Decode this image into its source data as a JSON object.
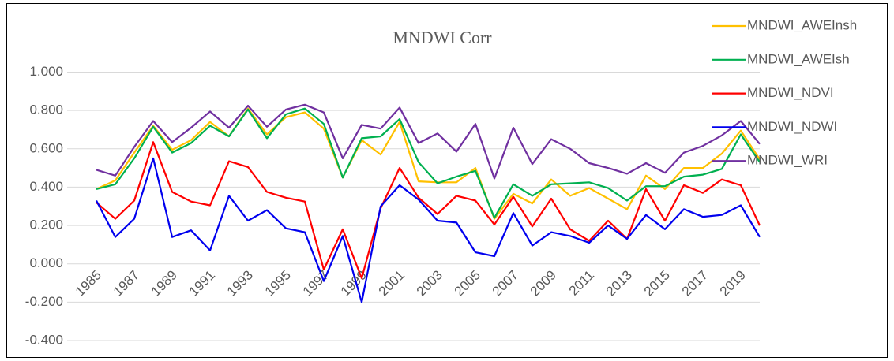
{
  "chart_data": {
    "type": "line",
    "title": "MNDWI Corr",
    "x": [
      1985,
      1986,
      1987,
      1988,
      1989,
      1990,
      1991,
      1992,
      1993,
      1994,
      1995,
      1996,
      1997,
      1998,
      1999,
      2000,
      2001,
      2002,
      2003,
      2004,
      2005,
      2006,
      2007,
      2008,
      2009,
      2010,
      2011,
      2012,
      2013,
      2014,
      2015,
      2016,
      2017,
      2018,
      2019,
      2020
    ],
    "xlim": [
      1984.5,
      2020.5
    ],
    "xticks": [
      1985,
      1987,
      1989,
      1991,
      1993,
      1995,
      1997,
      1999,
      2001,
      2003,
      2005,
      2007,
      2009,
      2011,
      2013,
      2015,
      2017,
      2019
    ],
    "ylim": [
      -0.4,
      1.0
    ],
    "yticks": [
      {
        "value": -0.4,
        "label": "-0.400"
      },
      {
        "value": -0.2,
        "label": "-0.200"
      },
      {
        "value": 0,
        "label": "0.000"
      },
      {
        "value": 0.2,
        "label": "0.200"
      },
      {
        "value": 0.4,
        "label": "0.400"
      },
      {
        "value": 0.6,
        "label": "0.600"
      },
      {
        "value": 0.8,
        "label": "0.800"
      },
      {
        "value": 1.0,
        "label": "1.000"
      }
    ],
    "grid": true,
    "legend": "right",
    "series": [
      {
        "name": "MNDWI_AWEInsh",
        "color": "#ffc000",
        "values": [
          0.39,
          0.435,
          0.58,
          0.72,
          0.595,
          0.645,
          0.74,
          0.665,
          0.81,
          0.675,
          0.765,
          0.79,
          0.705,
          0.45,
          0.645,
          0.57,
          0.74,
          0.43,
          0.425,
          0.425,
          0.5,
          0.235,
          0.365,
          0.315,
          0.44,
          0.355,
          0.395,
          0.34,
          0.285,
          0.46,
          0.39,
          0.5,
          0.5,
          0.575,
          0.695,
          0.545
        ]
      },
      {
        "name": "MNDWI_AWEIsh",
        "color": "#00b050",
        "values": [
          0.39,
          0.415,
          0.55,
          0.715,
          0.58,
          0.63,
          0.72,
          0.665,
          0.805,
          0.655,
          0.78,
          0.81,
          0.73,
          0.45,
          0.655,
          0.665,
          0.755,
          0.53,
          0.42,
          0.455,
          0.485,
          0.24,
          0.415,
          0.355,
          0.415,
          0.42,
          0.425,
          0.395,
          0.33,
          0.405,
          0.405,
          0.455,
          0.465,
          0.495,
          0.675,
          0.53
        ]
      },
      {
        "name": "MNDWI_NDVI",
        "color": "#ff0000",
        "values": [
          0.32,
          0.235,
          0.33,
          0.635,
          0.375,
          0.325,
          0.305,
          0.535,
          0.505,
          0.375,
          0.345,
          0.325,
          -0.03,
          0.18,
          -0.075,
          0.29,
          0.5,
          0.345,
          0.26,
          0.355,
          0.33,
          0.205,
          0.35,
          0.195,
          0.34,
          0.18,
          0.12,
          0.225,
          0.13,
          0.39,
          0.225,
          0.41,
          0.37,
          0.44,
          0.41,
          0.2
        ]
      },
      {
        "name": "MNDWI_NDWI",
        "color": "#0000ee",
        "values": [
          0.33,
          0.14,
          0.235,
          0.55,
          0.14,
          0.175,
          0.07,
          0.355,
          0.225,
          0.28,
          0.185,
          0.165,
          -0.09,
          0.145,
          -0.2,
          0.3,
          0.41,
          0.335,
          0.225,
          0.215,
          0.06,
          0.04,
          0.265,
          0.095,
          0.165,
          0.145,
          0.11,
          0.2,
          0.13,
          0.255,
          0.18,
          0.285,
          0.245,
          0.255,
          0.305,
          0.14
        ]
      },
      {
        "name": "MNDWI_WRI",
        "color": "#7030a0",
        "values": [
          0.49,
          0.46,
          0.61,
          0.745,
          0.635,
          0.71,
          0.795,
          0.71,
          0.825,
          0.715,
          0.805,
          0.83,
          0.79,
          0.55,
          0.725,
          0.705,
          0.815,
          0.63,
          0.68,
          0.585,
          0.73,
          0.445,
          0.71,
          0.52,
          0.65,
          0.6,
          0.525,
          0.5,
          0.47,
          0.525,
          0.475,
          0.58,
          0.615,
          0.67,
          0.745,
          0.625
        ]
      }
    ]
  }
}
